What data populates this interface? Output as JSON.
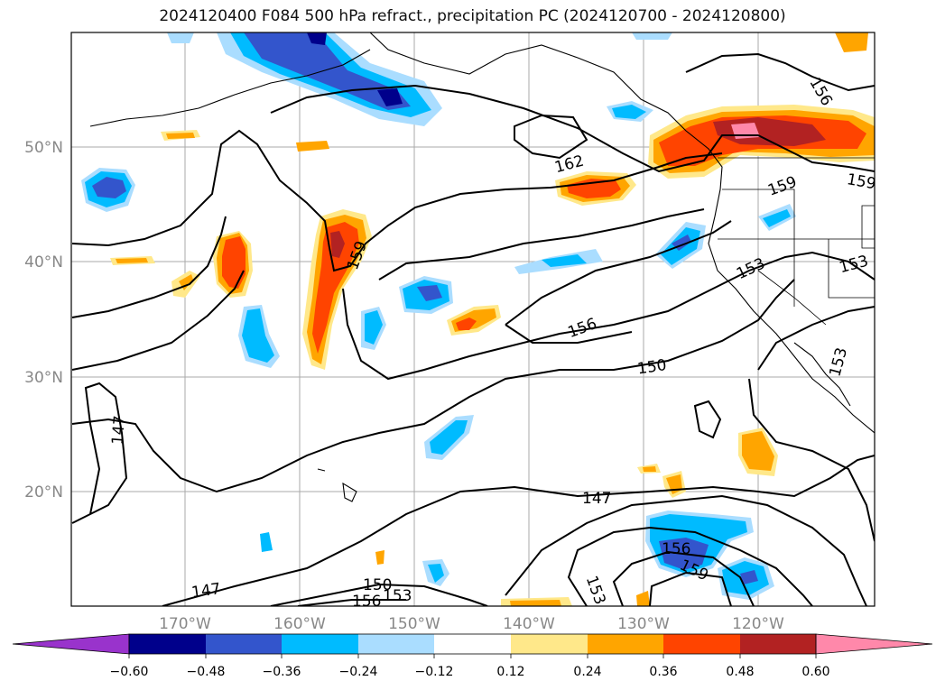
{
  "title": "2024120400 F084 500 hPa refract., precipitation PC (2024120700 - 2024120800)",
  "lat_labels": [
    "50°N",
    "40°N",
    "30°N",
    "20°N"
  ],
  "lon_labels": [
    "170°W",
    "160°W",
    "150°W",
    "140°W",
    "130°W",
    "120°W"
  ],
  "contour_labels": [
    "162",
    "156",
    "159",
    "159",
    "159",
    "153",
    "153",
    "156",
    "150",
    "147",
    "147",
    "147",
    "156",
    "153",
    "159",
    "153",
    "150",
    "156",
    "153"
  ],
  "colorbar": {
    "ticks": [
      "−0.60",
      "−0.48",
      "−0.36",
      "−0.24",
      "−0.12",
      "0.12",
      "0.24",
      "0.36",
      "0.48",
      "0.60"
    ],
    "colors": [
      "#9933cc",
      "#00008b",
      "#3355cc",
      "#00bbff",
      "#aaddff",
      "#ffffff",
      "#ffe88a",
      "#ffa500",
      "#ff4400",
      "#b22222",
      "#ff88aa"
    ]
  }
}
